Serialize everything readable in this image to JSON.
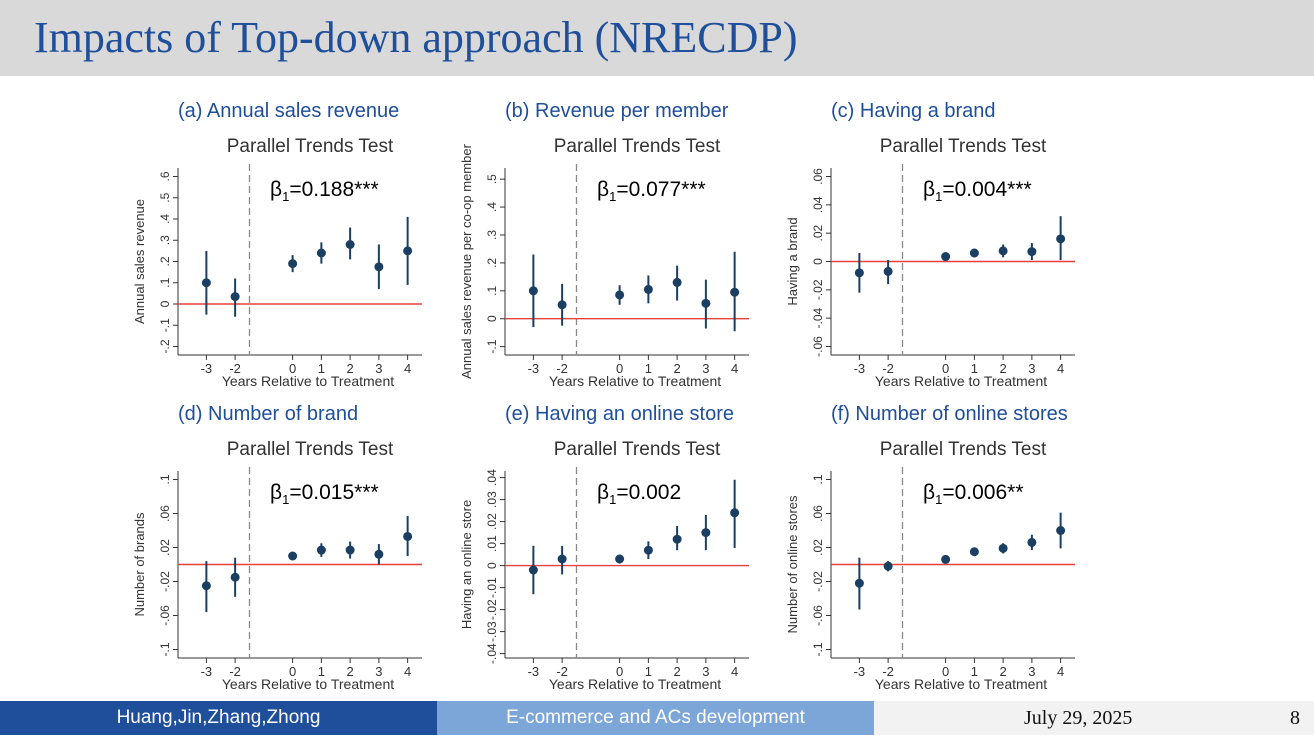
{
  "slide": {
    "title": "Impacts of Top-down approach (NRECDP)"
  },
  "footer": {
    "authors": "Huang,Jin,Zhang,Zhong",
    "topic": "E-commerce and ACs development",
    "date": "July 29, 2025",
    "page": "8"
  },
  "colors": {
    "title": "#1f4e9a",
    "point": "#1a3f62",
    "zero_line": "#e8403a",
    "footer_dark": "#1f4e9a",
    "footer_light": "#7da6d8"
  },
  "chart_data": [
    {
      "type": "scatter",
      "caption": "(a) Annual sales revenue",
      "title": "Parallel Trends Test",
      "annotation": "β1=0.188***",
      "xlabel": "Years Relative to Treatment",
      "ylabel": "Annual sales revenue",
      "x": [
        -3,
        -2,
        0,
        1,
        2,
        3,
        4
      ],
      "x_tick_labels": [
        "-3",
        "-2",
        "0",
        "1",
        "2",
        "3",
        "4"
      ],
      "y_ticks": [
        -0.2,
        -0.1,
        0,
        0.1,
        0.2,
        0.3,
        0.4,
        0.5,
        0.6
      ],
      "y_tick_labels": [
        "-.2",
        "-.1",
        "0",
        ".1",
        ".2",
        ".3",
        ".4",
        ".5",
        ".6"
      ],
      "ylim": [
        -0.24,
        0.64
      ],
      "estimates": [
        0.1,
        0.035,
        0.19,
        0.24,
        0.28,
        0.175,
        0.25
      ],
      "ci_low": [
        -0.05,
        -0.06,
        0.15,
        0.19,
        0.21,
        0.07,
        0.09
      ],
      "ci_high": [
        0.25,
        0.12,
        0.23,
        0.29,
        0.36,
        0.28,
        0.41
      ]
    },
    {
      "type": "scatter",
      "caption": "(b) Revenue per member",
      "title": "Parallel Trends Test",
      "annotation": "β1=0.077***",
      "xlabel": "Years Relative to Treatment",
      "ylabel": "Annual sales revenue per co-op member",
      "x": [
        -3,
        -2,
        0,
        1,
        2,
        3,
        4
      ],
      "x_tick_labels": [
        "-3",
        "-2",
        "0",
        "1",
        "2",
        "3",
        "4"
      ],
      "y_ticks": [
        -0.1,
        0,
        0.1,
        0.2,
        0.3,
        0.4,
        0.5
      ],
      "y_tick_labels": [
        "-.1",
        "0",
        ".1",
        ".2",
        ".3",
        ".4",
        ".5"
      ],
      "ylim": [
        -0.13,
        0.54
      ],
      "estimates": [
        0.1,
        0.05,
        0.085,
        0.105,
        0.13,
        0.055,
        0.095
      ],
      "ci_low": [
        -0.03,
        -0.025,
        0.05,
        0.055,
        0.065,
        -0.035,
        -0.045
      ],
      "ci_high": [
        0.23,
        0.125,
        0.12,
        0.155,
        0.19,
        0.14,
        0.24
      ]
    },
    {
      "type": "scatter",
      "caption": "(c) Having a brand",
      "title": "Parallel Trends Test",
      "annotation": "β1=0.004***",
      "xlabel": "Years Relative to Treatment",
      "ylabel": "Having a brand",
      "x": [
        -3,
        -2,
        0,
        1,
        2,
        3,
        4
      ],
      "x_tick_labels": [
        "-3",
        "-2",
        "0",
        "1",
        "2",
        "3",
        "4"
      ],
      "y_ticks": [
        -0.06,
        -0.04,
        -0.02,
        0,
        0.02,
        0.04,
        0.06
      ],
      "y_tick_labels": [
        "-.06",
        "-.04",
        "-.02",
        "0",
        ".02",
        ".04",
        ".06"
      ],
      "ylim": [
        -0.066,
        0.066
      ],
      "estimates": [
        -0.008,
        -0.007,
        0.0035,
        0.006,
        0.0075,
        0.007,
        0.016
      ],
      "ci_low": [
        -0.022,
        -0.016,
        0.001,
        0.003,
        0.003,
        0.001,
        0.001
      ],
      "ci_high": [
        0.006,
        0.001,
        0.006,
        0.009,
        0.012,
        0.013,
        0.032
      ]
    },
    {
      "type": "scatter",
      "caption": "(d) Number of brand",
      "title": "Parallel Trends Test",
      "annotation": "β1=0.015***",
      "xlabel": "Years Relative to Treatment",
      "ylabel": "Number of brands",
      "x": [
        -3,
        -2,
        0,
        1,
        2,
        3,
        4
      ],
      "x_tick_labels": [
        "-3",
        "-2",
        "0",
        "1",
        "2",
        "3",
        "4"
      ],
      "y_ticks": [
        -0.1,
        -0.06,
        -0.02,
        0.02,
        0.06,
        0.1
      ],
      "y_tick_labels": [
        "-.1",
        "-.06",
        "-.02",
        ".02",
        ".06",
        ".1"
      ],
      "ylim": [
        -0.11,
        0.11
      ],
      "zero_value": 0,
      "estimates": [
        -0.025,
        -0.015,
        0.01,
        0.017,
        0.017,
        0.012,
        0.033
      ],
      "ci_low": [
        -0.056,
        -0.038,
        0.006,
        0.009,
        0.007,
        0.0,
        0.01
      ],
      "ci_high": [
        0.004,
        0.008,
        0.014,
        0.025,
        0.027,
        0.024,
        0.057
      ]
    },
    {
      "type": "scatter",
      "caption": "(e) Having an online store",
      "title": "Parallel Trends Test",
      "annotation": "β1=0.002",
      "xlabel": "Years Relative to Treatment",
      "ylabel": "Having an online store",
      "x": [
        -3,
        -2,
        0,
        1,
        2,
        3,
        4
      ],
      "x_tick_labels": [
        "-3",
        "-2",
        "0",
        "1",
        "2",
        "3",
        "4"
      ],
      "y_ticks": [
        -0.04,
        -0.03,
        -0.02,
        -0.01,
        0,
        0.01,
        0.02,
        0.03,
        0.04
      ],
      "y_tick_labels": [
        "-.04",
        "-.03",
        "-.02",
        "-.01",
        "0",
        ".01",
        ".02",
        ".03",
        ".04"
      ],
      "ylim": [
        -0.042,
        0.043
      ],
      "estimates": [
        -0.002,
        0.003,
        0.003,
        0.007,
        0.012,
        0.015,
        0.024
      ],
      "ci_low": [
        -0.013,
        -0.004,
        0.001,
        0.003,
        0.007,
        0.007,
        0.008
      ],
      "ci_high": [
        0.009,
        0.009,
        0.005,
        0.011,
        0.018,
        0.023,
        0.039
      ]
    },
    {
      "type": "scatter",
      "caption": "(f) Number of online stores",
      "title": "Parallel Trends Test",
      "annotation": "β1=0.006**",
      "xlabel": "Years Relative to Treatment",
      "ylabel": "Number of online stores",
      "x": [
        -3,
        -2,
        0,
        1,
        2,
        3,
        4
      ],
      "x_tick_labels": [
        "-3",
        "-2",
        "0",
        "1",
        "2",
        "3",
        "4"
      ],
      "y_ticks": [
        -0.1,
        -0.06,
        -0.02,
        0.02,
        0.06,
        0.1
      ],
      "y_tick_labels": [
        "-.1",
        "-.06",
        "-.02",
        ".02",
        ".06",
        ".1"
      ],
      "ylim": [
        -0.11,
        0.11
      ],
      "zero_value": 0,
      "estimates": [
        -0.022,
        -0.002,
        0.006,
        0.015,
        0.019,
        0.026,
        0.04
      ],
      "ci_low": [
        -0.053,
        -0.008,
        0.003,
        0.011,
        0.013,
        0.017,
        0.019
      ],
      "ci_high": [
        0.008,
        0.004,
        0.009,
        0.019,
        0.025,
        0.035,
        0.061
      ]
    }
  ]
}
